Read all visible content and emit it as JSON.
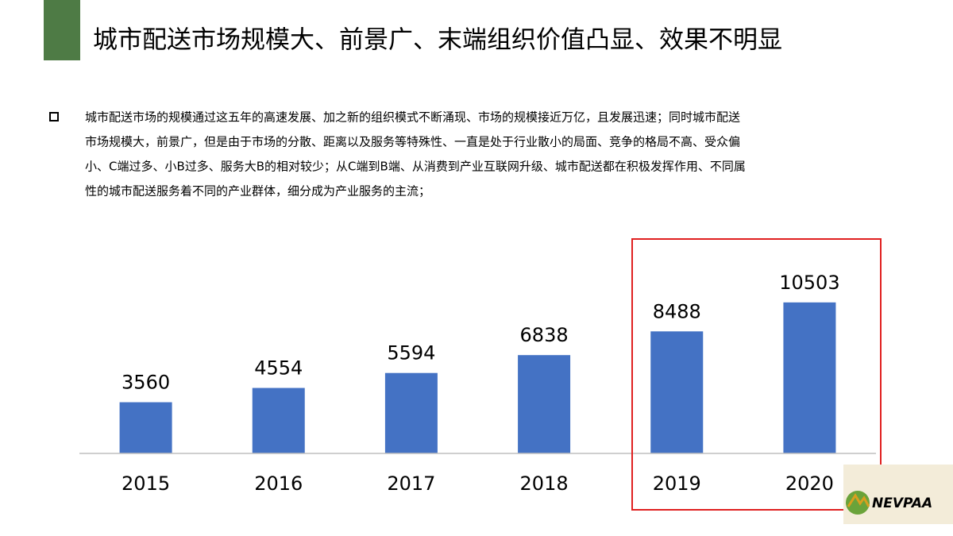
{
  "header": {
    "title": "城市配送市场规模大、前景广、末端组织价值凸显、效果不明显"
  },
  "body": {
    "lines": [
      "城市配送市场的规模通过这五年的高速发展、加之新的组织模式不断涌现、市场的规模接近万亿，且发展迅速；同时城市配送",
      "市场规模大，前景广，但是由于市场的分散、距离以及服务等特殊性、一直是处于行业散小的局面、竞争的格局不高、受众偏",
      "小、C端过多、小B过多、服务大B的相对较少；从C端到B端、从消费到产业互联网升级、城市配送都在积极发挥作用、不同属",
      "性的城市配送服务着不同的产业群体，细分成为产业服务的主流；"
    ]
  },
  "logo": "NEVPAA",
  "chart_data": {
    "type": "bar",
    "categories": [
      "2015",
      "2016",
      "2017",
      "2018",
      "2019",
      "2020"
    ],
    "values": [
      3560,
      4554,
      5594,
      6838,
      8488,
      10503
    ],
    "color": "#4472c4",
    "ylim": [
      0,
      12000
    ]
  }
}
